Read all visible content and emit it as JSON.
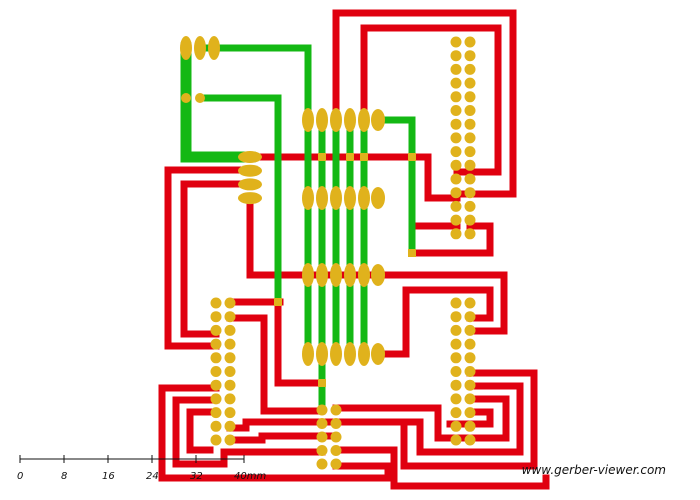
{
  "viewer": {
    "watermark": "www.gerber-viewer.com",
    "colors": {
      "background": "#ffffff",
      "bottom_copper": "#e0000f",
      "top_copper": "#14b814",
      "pads": "#e0b21c",
      "scale": "#111111"
    }
  },
  "scale_bar": {
    "ticks": [
      "0",
      "8",
      "16",
      "24",
      "32",
      "40mm"
    ]
  },
  "layers": {
    "bottom": "bottom-copper-layer",
    "top": "top-copper-layer",
    "pads": "pad-layer"
  }
}
